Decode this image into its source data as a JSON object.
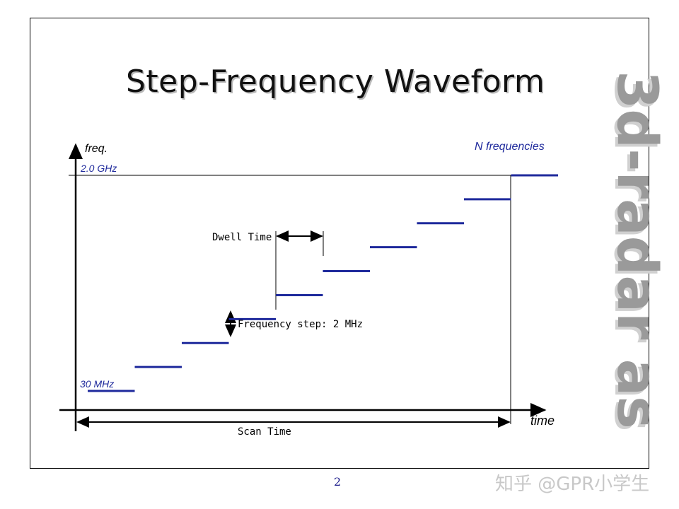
{
  "slide": {
    "title": "Step-Frequency Waveform",
    "page_number": "2",
    "watermark": "3d-radar as",
    "footer_credit": "知乎 @GPR小学生"
  },
  "colors": {
    "step_line": "#1f2a9c",
    "label_blue": "#1f2a9c",
    "axis": "#000000"
  },
  "diagram": {
    "y_axis_label": "freq.",
    "x_axis_label": "time",
    "top_freq_label": "2.0 GHz",
    "bottom_freq_label": "30 MHz",
    "n_freq_label": "N frequencies",
    "dwell_label": "Dwell Time",
    "step_label": "Frequency step: 2 MHz",
    "scan_label": "Scan Time",
    "step_count": 10
  }
}
